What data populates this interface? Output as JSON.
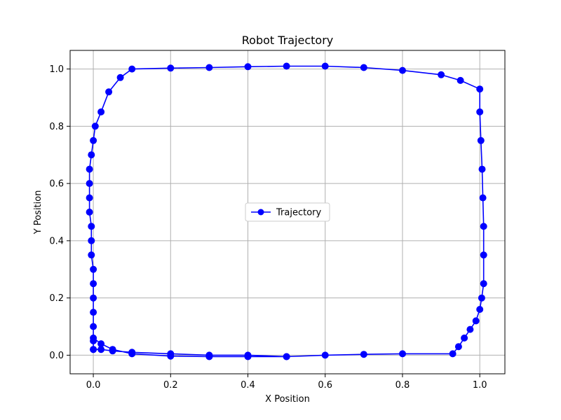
{
  "chart_data": {
    "type": "line",
    "title": "Robot Trajectory",
    "xlabel": "X Position",
    "ylabel": "Y Position",
    "xlim": [
      -0.06,
      1.065
    ],
    "ylim": [
      -0.065,
      1.065
    ],
    "xticks": [
      0.0,
      0.2,
      0.4,
      0.6,
      0.8,
      1.0
    ],
    "xtick_labels": [
      "0.0",
      "0.2",
      "0.4",
      "0.6",
      "0.8",
      "1.0"
    ],
    "yticks": [
      0.0,
      0.2,
      0.4,
      0.6,
      0.8,
      1.0
    ],
    "ytick_labels": [
      "0.0",
      "0.2",
      "0.4",
      "0.6",
      "0.8",
      "1.0"
    ],
    "grid": true,
    "legend": {
      "placement": "center"
    },
    "series": [
      {
        "name": "Trajectory",
        "color": "#0000ff",
        "marker": "circle",
        "x": [
          0.0,
          0.0,
          0.0,
          0.0,
          0.0,
          0.0,
          0.0,
          -0.005,
          -0.005,
          -0.005,
          -0.01,
          -0.01,
          -0.01,
          -0.01,
          -0.005,
          0.0,
          0.005,
          0.02,
          0.04,
          0.07,
          0.1,
          0.2,
          0.3,
          0.4,
          0.5,
          0.6,
          0.7,
          0.8,
          0.9,
          0.95,
          1.0,
          1.0,
          1.003,
          1.006,
          1.008,
          1.01,
          1.01,
          1.01,
          1.005,
          1.0,
          0.99,
          0.975,
          0.96,
          0.945,
          0.93,
          0.8,
          0.7,
          0.6,
          0.5,
          0.4,
          0.3,
          0.2,
          0.1,
          0.05,
          0.02,
          0.0,
          0.0,
          0.02,
          0.05,
          0.1,
          0.2,
          0.3,
          0.4,
          0.5
        ],
        "y": [
          0.02,
          0.05,
          0.1,
          0.15,
          0.2,
          0.25,
          0.3,
          0.35,
          0.4,
          0.45,
          0.5,
          0.55,
          0.6,
          0.65,
          0.7,
          0.75,
          0.8,
          0.85,
          0.92,
          0.97,
          1.0,
          1.003,
          1.005,
          1.008,
          1.01,
          1.01,
          1.005,
          0.995,
          0.98,
          0.96,
          0.93,
          0.85,
          0.75,
          0.65,
          0.55,
          0.45,
          0.35,
          0.25,
          0.2,
          0.16,
          0.12,
          0.09,
          0.06,
          0.03,
          0.005,
          0.005,
          0.003,
          0.0,
          -0.005,
          -0.005,
          -0.005,
          -0.003,
          0.005,
          0.02,
          0.04,
          0.06,
          0.02,
          0.02,
          0.015,
          0.01,
          0.005,
          0.0,
          0.0,
          -0.005
        ]
      }
    ]
  }
}
